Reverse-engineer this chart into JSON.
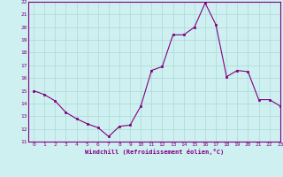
{
  "x": [
    0,
    1,
    2,
    3,
    4,
    5,
    6,
    7,
    8,
    9,
    10,
    11,
    12,
    13,
    14,
    15,
    16,
    17,
    18,
    19,
    20,
    21,
    22,
    23
  ],
  "y": [
    15.0,
    14.7,
    14.2,
    13.3,
    12.8,
    12.4,
    12.1,
    11.4,
    12.2,
    12.3,
    13.8,
    16.6,
    16.9,
    19.4,
    19.4,
    20.0,
    21.9,
    20.2,
    16.1,
    16.6,
    16.5,
    14.3,
    14.3,
    13.8
  ],
  "xlabel": "Windchill (Refroidissement éolien,°C)",
  "ylim": [
    11,
    22
  ],
  "xlim": [
    -0.5,
    23
  ],
  "yticks": [
    11,
    12,
    13,
    14,
    15,
    16,
    17,
    18,
    19,
    20,
    21,
    22
  ],
  "xticks": [
    0,
    1,
    2,
    3,
    4,
    5,
    6,
    7,
    8,
    9,
    10,
    11,
    12,
    13,
    14,
    15,
    16,
    17,
    18,
    19,
    20,
    21,
    22,
    23
  ],
  "line_color": "#800080",
  "marker_color": "#800080",
  "bg_color": "#cff0f0",
  "grid_color": "#aad8d8",
  "axis_label_color": "#800080",
  "tick_label_color": "#800080",
  "spine_color": "#800080"
}
